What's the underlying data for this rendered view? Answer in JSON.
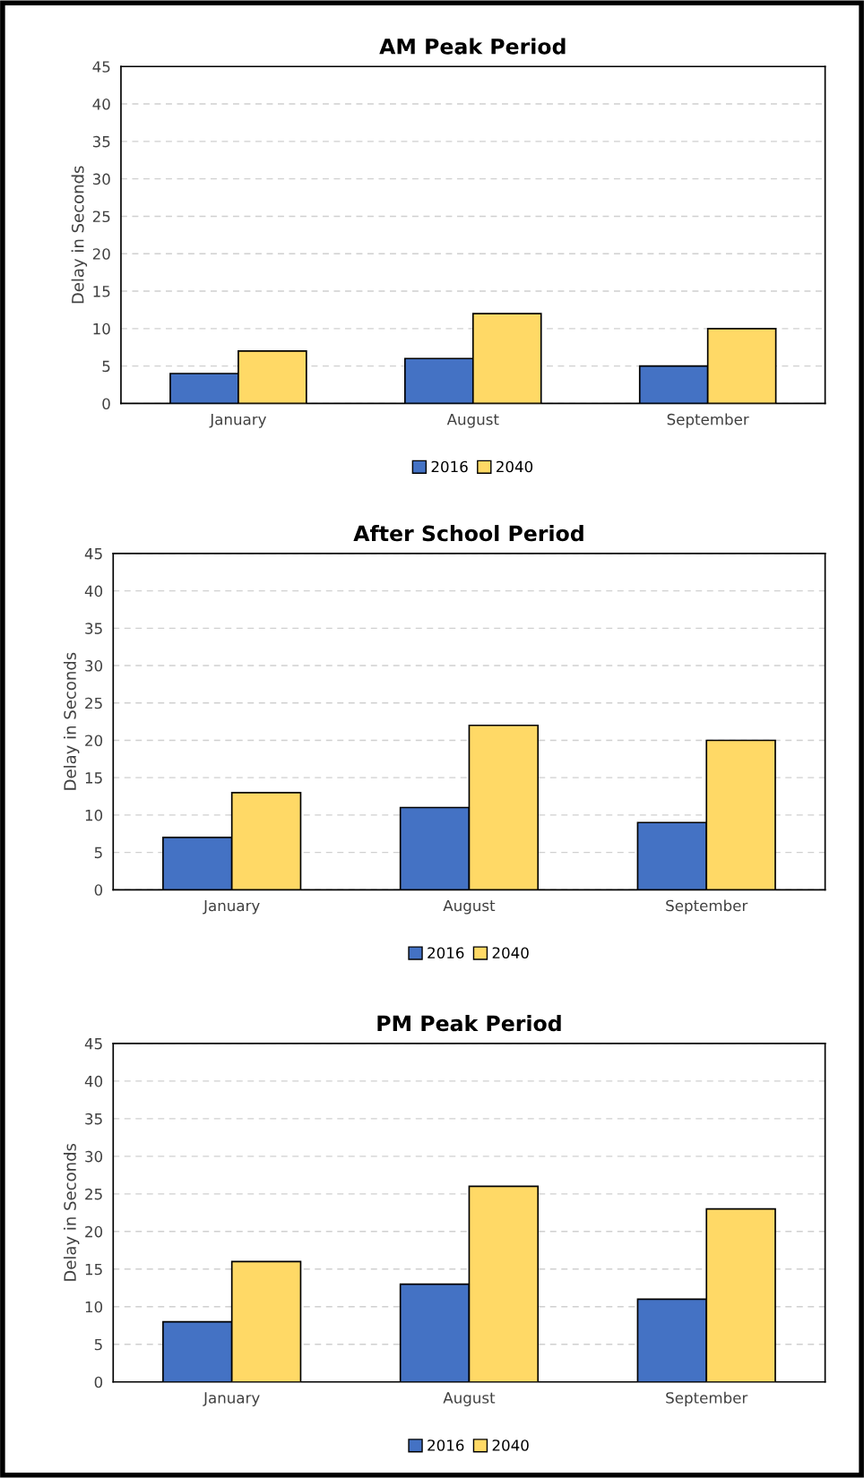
{
  "chart_data": [
    {
      "type": "bar",
      "title": "AM Peak Period",
      "ylabel": "Delay in Seconds",
      "categories": [
        "January",
        "August",
        "September"
      ],
      "series": [
        {
          "name": "2016",
          "color": "#4472c4",
          "values": [
            4,
            6,
            5
          ]
        },
        {
          "name": "2040",
          "color": "#ffd966",
          "values": [
            7,
            12,
            10
          ]
        }
      ],
      "ylim": [
        0,
        45
      ],
      "yticks": [
        0,
        5,
        10,
        15,
        20,
        25,
        30,
        35,
        40,
        45
      ],
      "grid": "y",
      "legend": "bottom"
    },
    {
      "type": "bar",
      "title": "After School Period",
      "ylabel": "Delay in Seconds",
      "categories": [
        "January",
        "August",
        "September"
      ],
      "series": [
        {
          "name": "2016",
          "color": "#4472c4",
          "values": [
            7,
            11,
            9
          ]
        },
        {
          "name": "2040",
          "color": "#ffd966",
          "values": [
            13,
            22,
            20
          ]
        }
      ],
      "ylim": [
        0,
        45
      ],
      "yticks": [
        0,
        5,
        10,
        15,
        20,
        25,
        30,
        35,
        40,
        45
      ],
      "grid": "y",
      "legend": "bottom"
    },
    {
      "type": "bar",
      "title": "PM Peak Period",
      "ylabel": "Delay in Seconds",
      "categories": [
        "January",
        "August",
        "September"
      ],
      "series": [
        {
          "name": "2016",
          "color": "#4472c4",
          "values": [
            8,
            13,
            11
          ]
        },
        {
          "name": "2040",
          "color": "#ffd966",
          "values": [
            16,
            26,
            23
          ]
        }
      ],
      "ylim": [
        0,
        45
      ],
      "yticks": [
        0,
        5,
        10,
        15,
        20,
        25,
        30,
        35,
        40,
        45
      ],
      "grid": "y",
      "legend": "bottom"
    }
  ]
}
